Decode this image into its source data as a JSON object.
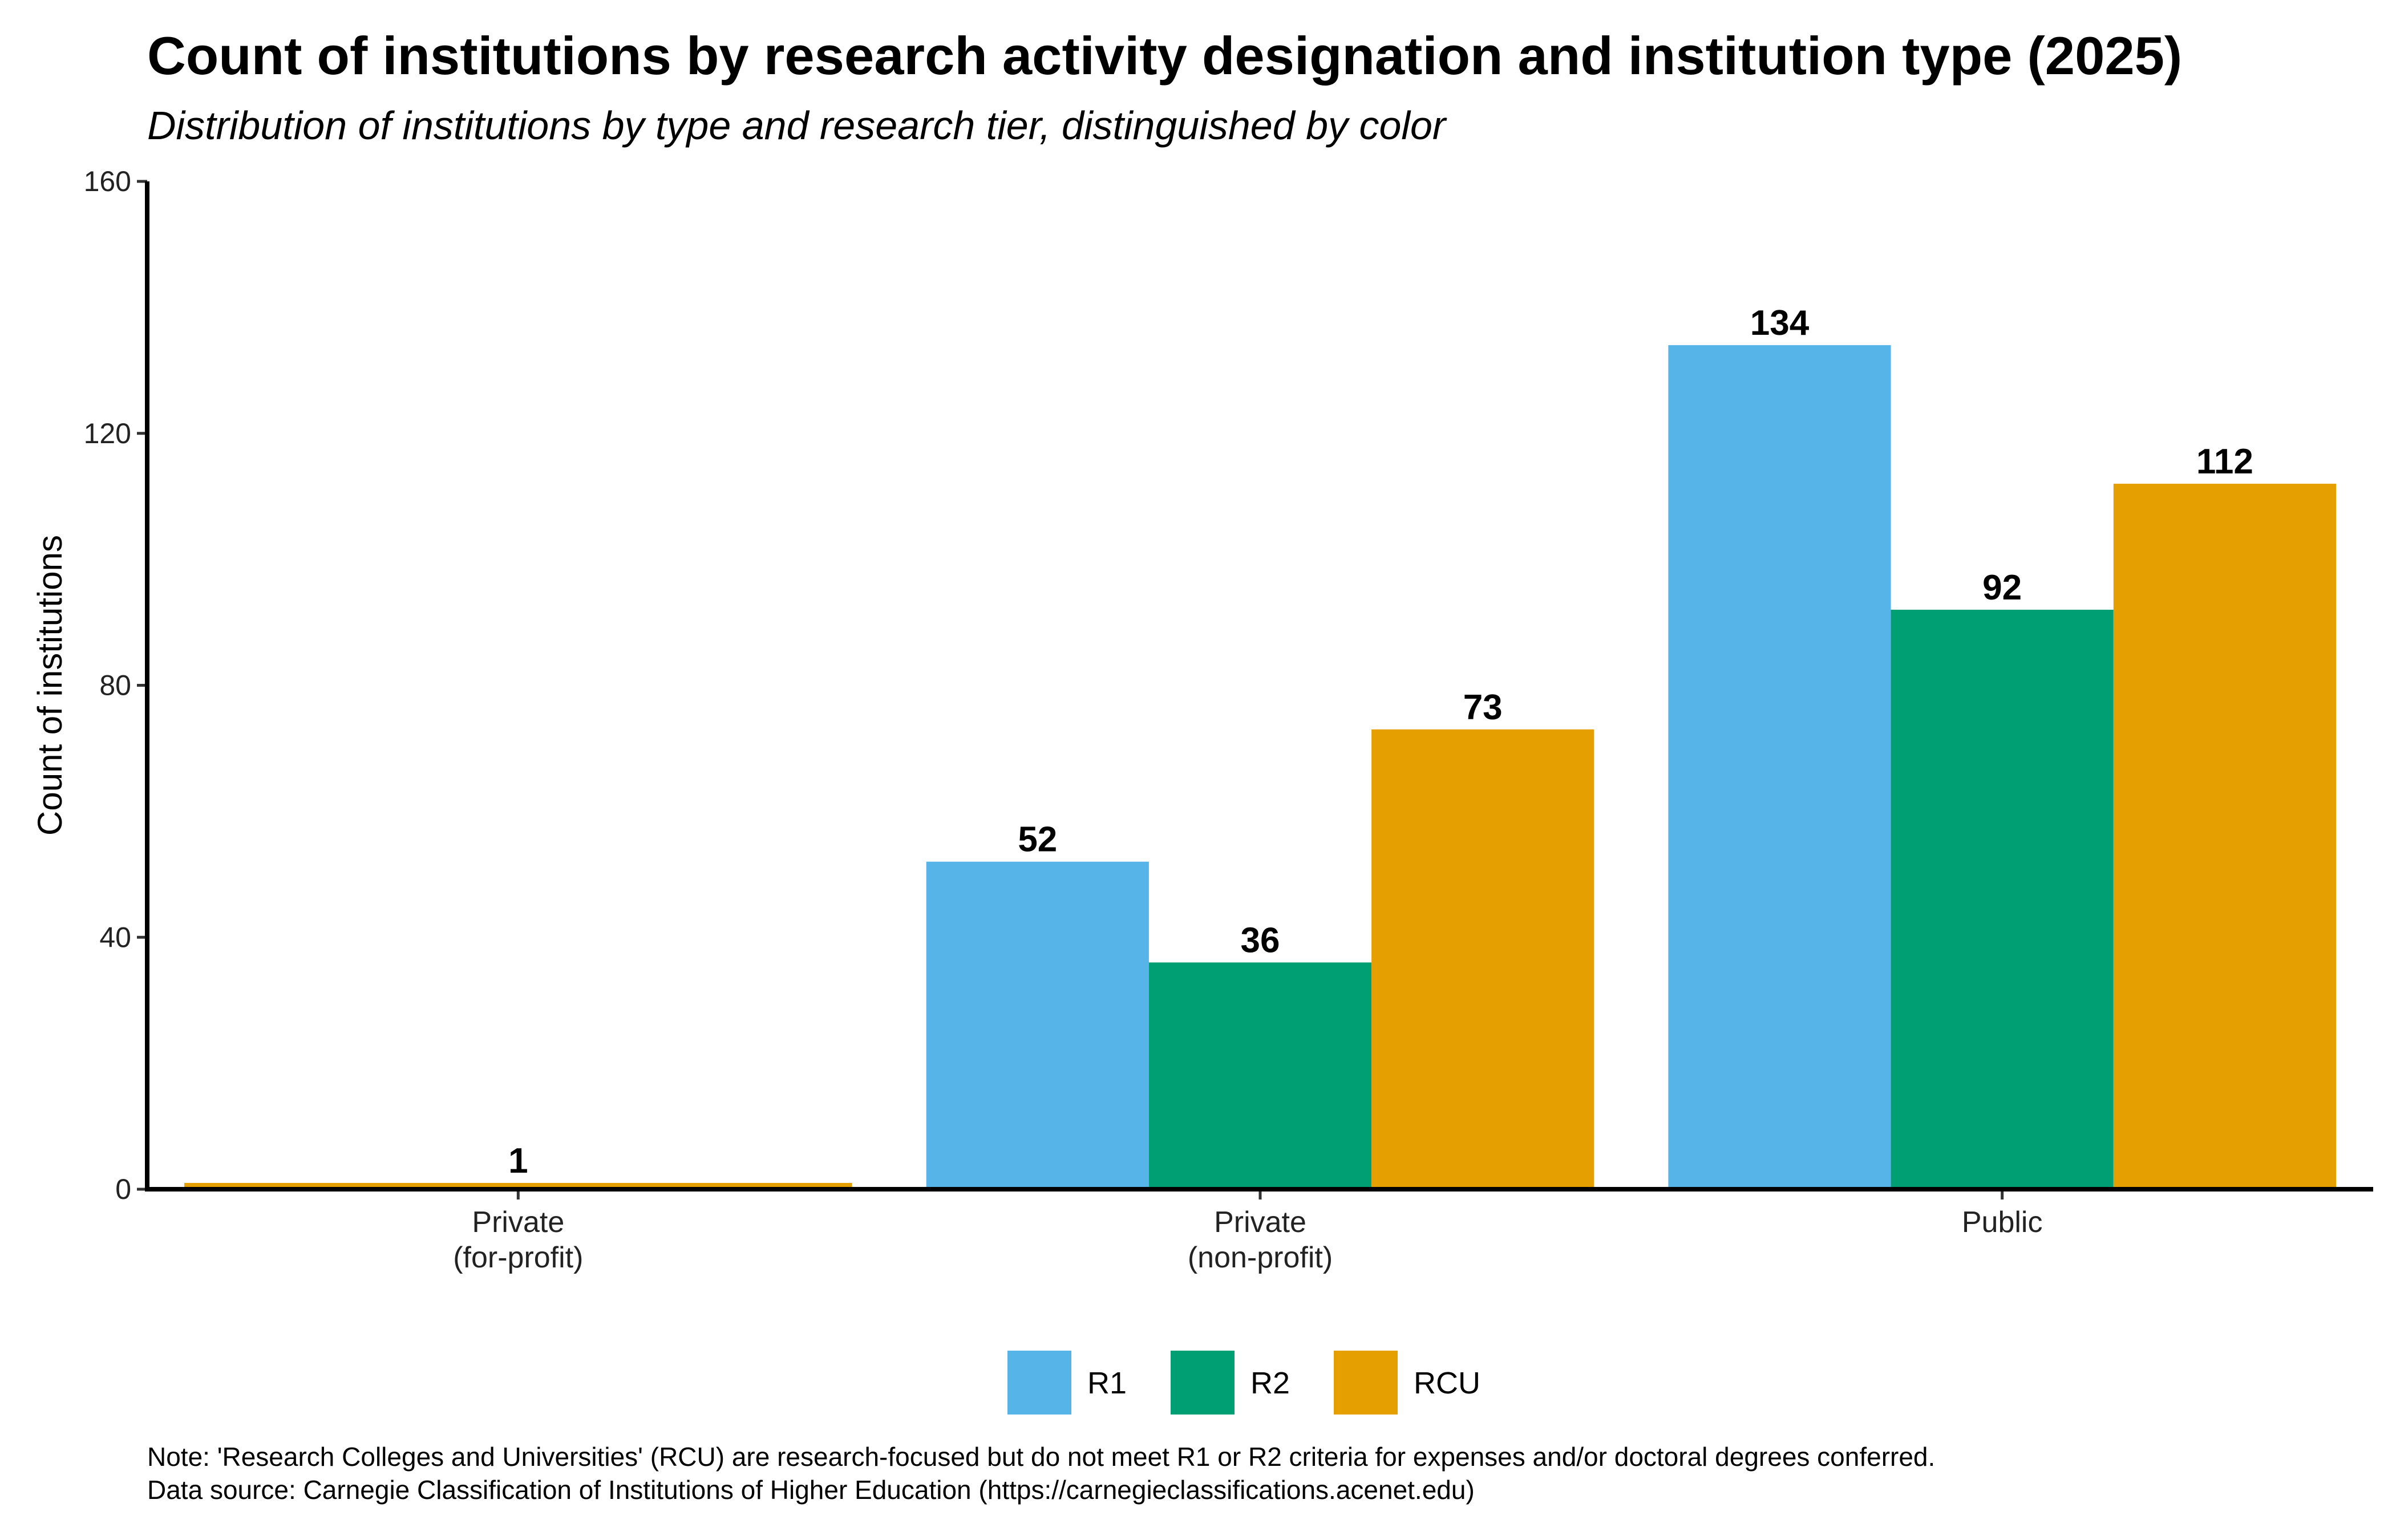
{
  "header": {
    "title": "Count of institutions by research activity designation and institution type (2025)",
    "subtitle": "Distribution of institutions by type and research tier, distinguished by color"
  },
  "chart_data": {
    "type": "bar",
    "title": "Count of institutions by research activity designation and institution type (2025)",
    "subtitle": "Distribution of institutions by type and research tier, distinguished by color",
    "xlabel": "",
    "ylabel": "Count of institutions",
    "ylim": [
      0,
      160
    ],
    "yticks": [
      0,
      40,
      80,
      120,
      160
    ],
    "categories": [
      [
        "Private",
        "(for-profit)"
      ],
      [
        "Private",
        "(non-profit)"
      ],
      [
        "Public"
      ]
    ],
    "series": [
      {
        "name": "R1",
        "color": "#56B4E9",
        "values": [
          0,
          52,
          134
        ]
      },
      {
        "name": "R2",
        "color": "#009E73",
        "values": [
          0,
          36,
          92
        ]
      },
      {
        "name": "RCU",
        "color": "#E69F00",
        "values": [
          1,
          73,
          112
        ]
      }
    ],
    "bar_layout": "dodge",
    "data_labels": true,
    "legend_position": "bottom",
    "grid": false
  },
  "footer": {
    "note": "Note: 'Research Colleges and Universities' (RCU) are research-focused but do not meet R1 or R2 criteria for expenses and/or doctoral degrees conferred.",
    "source": "Data source: Carnegie Classification of Institutions of Higher Education (https://carnegieclassifications.acenet.edu)"
  }
}
